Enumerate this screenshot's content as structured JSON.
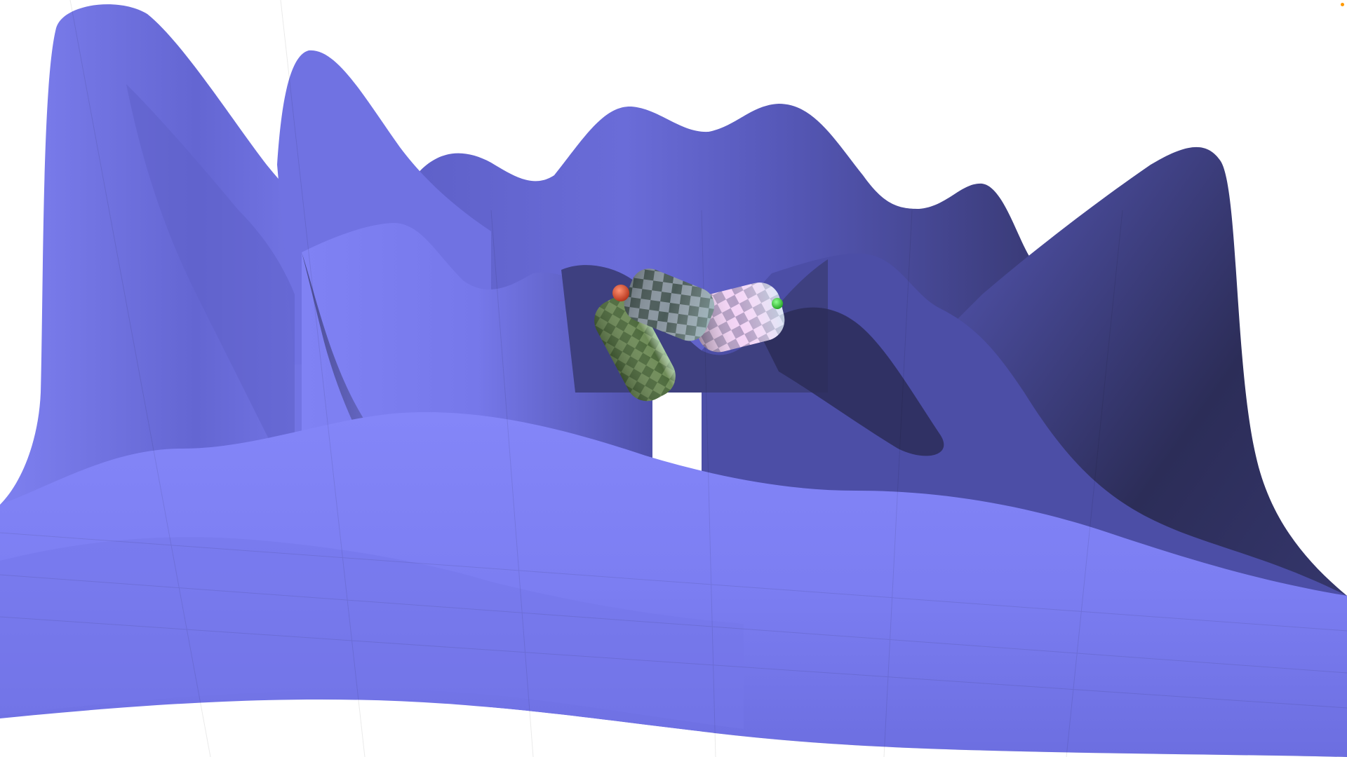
{
  "scene": {
    "kind": "3d-heightmap-render",
    "colors": {
      "background": "#ffffff",
      "terrain_light": "#8688f8",
      "terrain_mid": "#6e70dc",
      "terrain_dark": "#2c2d58",
      "terrain_deep": "#1f2040",
      "capsule_green": "#5c7848",
      "capsule_green_light": "#b4dcb0",
      "capsule_pink": "#f6c8f4",
      "capsule_cyan": "#c8f4f4",
      "sphere_red": "#e05030",
      "sphere_green": "#40d040",
      "corner_marker": "#ff9900"
    },
    "objects": [
      {
        "name": "terrain",
        "icon": "mountain-surface"
      },
      {
        "name": "green-capsule",
        "icon": "checkered-cylinder"
      },
      {
        "name": "pastel-capsule",
        "icon": "checkered-cylinder"
      },
      {
        "name": "red-sphere",
        "icon": "sphere"
      },
      {
        "name": "green-sphere",
        "icon": "sphere"
      }
    ]
  }
}
